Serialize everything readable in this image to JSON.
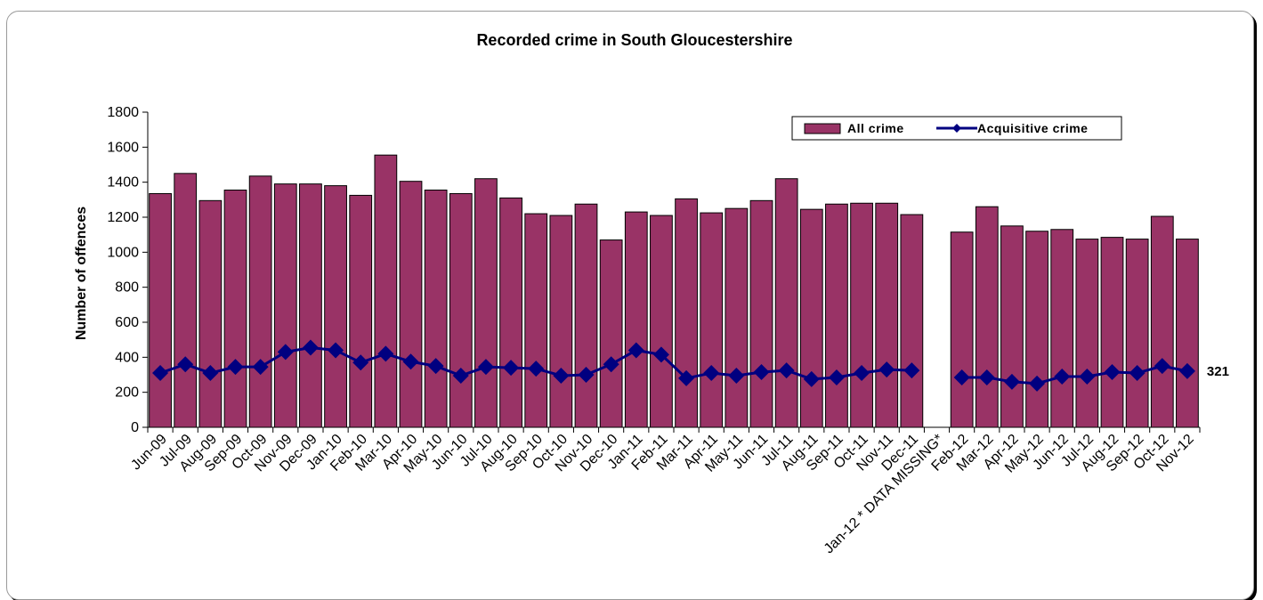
{
  "chart_data": {
    "type": "bar",
    "title": "Recorded crime in South Gloucestershire",
    "ylabel": "Number of offences",
    "xlabel": "",
    "ylim": [
      0,
      1800
    ],
    "yticks": [
      0,
      200,
      400,
      600,
      800,
      1000,
      1200,
      1400,
      1600,
      1800
    ],
    "legend_position": "top-right",
    "categories": [
      "Jun-09",
      "Jul-09",
      "Aug-09",
      "Sep-09",
      "Oct-09",
      "Nov-09",
      "Dec-09",
      "Jan-10",
      "Feb-10",
      "Mar-10",
      "Apr-10",
      "May-10",
      "Jun-10",
      "Jul-10",
      "Aug-10",
      "Sep-10",
      "Oct-10",
      "Nov-10",
      "Dec-10",
      "Jan-11",
      "Feb-11",
      "Mar-11",
      "Apr-11",
      "May-11",
      "Jun-11",
      "Jul-11",
      "Aug-11",
      "Sep-11",
      "Oct-11",
      "Nov-11",
      "Dec-11",
      "Jan-12 * DATA MISSING*",
      "Feb-12",
      "Mar-12",
      "Apr-12",
      "May-12",
      "Jun-12",
      "Jul-12",
      "Aug-12",
      "Sep-12",
      "Oct-12",
      "Nov-12"
    ],
    "series": [
      {
        "name": "All crime",
        "type": "bar",
        "color": "#993366",
        "values": [
          1335,
          1450,
          1295,
          1355,
          1435,
          1390,
          1390,
          1380,
          1325,
          1555,
          1405,
          1355,
          1335,
          1420,
          1310,
          1220,
          1210,
          1275,
          1070,
          1230,
          1210,
          1305,
          1225,
          1250,
          1295,
          1420,
          1245,
          1275,
          1280,
          1280,
          1215,
          null,
          1115,
          1260,
          1150,
          1120,
          1130,
          1075,
          1085,
          1075,
          1205,
          1075
        ]
      },
      {
        "name": "Acquisitive crime",
        "type": "line",
        "color": "#000080",
        "values": [
          310,
          360,
          310,
          345,
          345,
          430,
          455,
          440,
          370,
          420,
          375,
          350,
          295,
          345,
          340,
          335,
          295,
          300,
          360,
          440,
          415,
          280,
          310,
          295,
          315,
          325,
          275,
          285,
          310,
          330,
          325,
          null,
          285,
          285,
          260,
          250,
          290,
          290,
          315,
          310,
          350,
          321
        ]
      }
    ],
    "data_labels": [
      {
        "series": "Acquisitive crime",
        "category": "Nov-12",
        "text": "321"
      }
    ]
  }
}
